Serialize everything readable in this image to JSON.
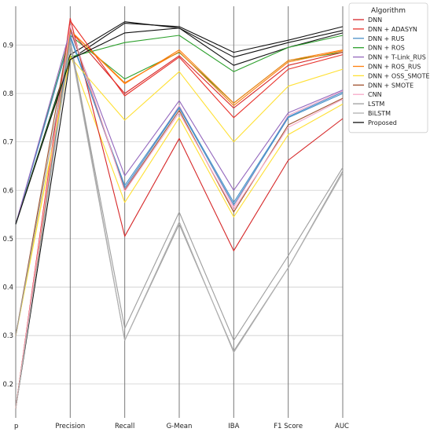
{
  "chart_data": {
    "type": "line",
    "subtype": "parallel-coordinates",
    "categories": [
      "p",
      "Precision",
      "Recall",
      "G-Mean",
      "IBA",
      "F1 Score",
      "AUC"
    ],
    "ylim": [
      0.13,
      0.98
    ],
    "yticks": [
      "0.2",
      "0.3",
      "0.4",
      "0.5",
      "0.6",
      "0.7",
      "0.8",
      "0.9"
    ],
    "grid": true,
    "legend": {
      "title": "Algorithm",
      "placement": "outside-right"
    },
    "series": [
      {
        "name": "DNN",
        "color": "#d62728",
        "values": [
          0.15,
          0.955,
          0.505,
          0.707,
          0.475,
          0.662,
          0.748
        ]
      },
      {
        "name": "DNN + ADASYN",
        "color": "#e8312a",
        "values": [
          0.15,
          0.95,
          0.795,
          0.875,
          0.75,
          0.85,
          0.88
        ]
      },
      {
        "name": "DNN + RUS",
        "color": "#4a90c8",
        "values": [
          0.15,
          0.92,
          0.605,
          0.77,
          0.57,
          0.75,
          0.8
        ]
      },
      {
        "name": "DNN + ROS",
        "color": "#2ca02c",
        "values": [
          0.53,
          0.875,
          0.905,
          0.92,
          0.845,
          0.895,
          0.92
        ]
      },
      {
        "name": "DNN + T-Link_RUS",
        "color": "#9467bd",
        "values": [
          0.53,
          0.93,
          0.63,
          0.785,
          0.6,
          0.76,
          0.807
        ]
      },
      {
        "name": "DNN + ROS_RUS",
        "color": "#ff7f0e",
        "values": [
          0.15,
          0.93,
          0.82,
          0.89,
          0.78,
          0.868,
          0.89
        ]
      },
      {
        "name": "DNN + OSS_SMOTE",
        "color": "#ffe033",
        "values": [
          0.3,
          0.875,
          0.745,
          0.845,
          0.7,
          0.815,
          0.85
        ]
      },
      {
        "name": "DNN + SMOTE",
        "color": "#a0522d",
        "values": [
          0.3,
          0.935,
          0.6,
          0.765,
          0.555,
          0.735,
          0.79
        ]
      },
      {
        "name": "CNN",
        "color": "#f7a8c8",
        "values": [
          0.15,
          0.94,
          0.598,
          0.76,
          0.56,
          0.73,
          0.788
        ]
      },
      {
        "name": "LSTM",
        "color": "#9e9e9e",
        "values": [
          0.3,
          0.91,
          0.315,
          0.555,
          0.29,
          0.465,
          0.647
        ]
      },
      {
        "name": "BiLSTM",
        "color": "#b0b0b0",
        "values": [
          0.15,
          0.9,
          0.29,
          0.535,
          0.265,
          0.44,
          0.636
        ]
      },
      {
        "name": "Proposed",
        "color": "#111111",
        "values": [
          0.53,
          0.87,
          0.925,
          0.935,
          0.875,
          0.905,
          0.93
        ]
      }
    ],
    "extra_lines": [
      {
        "color": "#ffe033",
        "values": [
          0.3,
          0.88,
          0.575,
          0.75,
          0.545,
          0.715,
          0.778
        ]
      },
      {
        "color": "#f7a8c8",
        "values": [
          0.15,
          0.92,
          0.602,
          0.775,
          0.565,
          0.755,
          0.805
        ]
      },
      {
        "color": "#2ca02c",
        "values": [
          0.53,
          0.92,
          0.83,
          0.885,
          0.78,
          0.868,
          0.885
        ]
      },
      {
        "color": "#ff7f0e",
        "values": [
          0.15,
          0.93,
          0.822,
          0.886,
          0.775,
          0.865,
          0.888
        ]
      },
      {
        "color": "#111111",
        "values": [
          0.15,
          0.87,
          0.945,
          0.938,
          0.885,
          0.91,
          0.938
        ]
      },
      {
        "color": "#111111",
        "values": [
          0.53,
          0.88,
          0.948,
          0.935,
          0.858,
          0.895,
          0.925
        ]
      },
      {
        "color": "#d62728",
        "values": [
          0.15,
          0.93,
          0.8,
          0.878,
          0.77,
          0.858,
          0.885
        ]
      },
      {
        "color": "#4a90c8",
        "values": [
          0.53,
          0.915,
          0.61,
          0.772,
          0.575,
          0.752,
          0.803
        ]
      },
      {
        "color": "#9e9e9e",
        "values": [
          0.15,
          0.91,
          0.29,
          0.53,
          0.268,
          0.44,
          0.64
        ]
      }
    ]
  }
}
